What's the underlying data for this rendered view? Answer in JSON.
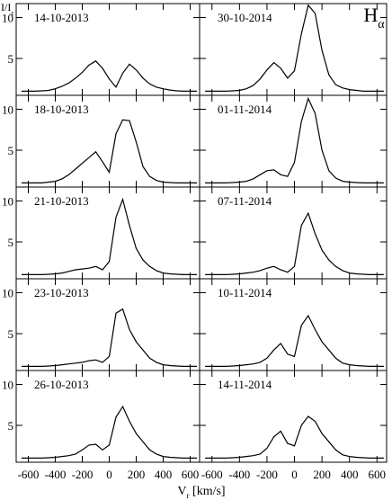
{
  "figure": {
    "title": {
      "main": "H",
      "sub": "α"
    },
    "y_label": {
      "main": "I/I",
      "sub": "c"
    },
    "x_label": {
      "main": "V",
      "sub": "r",
      "unit": " [km/s]"
    }
  },
  "chart_data": [
    {
      "type": "line",
      "title": "14-10-2013",
      "xlim": [
        -690,
        670
      ],
      "ylim": [
        0.5,
        11.7
      ],
      "xticks": [
        -600,
        -400,
        -200,
        0,
        200,
        400,
        600
      ],
      "yticks": [
        5,
        10
      ],
      "color": "#000000",
      "x": [
        -650,
        -600,
        -550,
        -500,
        -450,
        -400,
        -350,
        -300,
        -250,
        -200,
        -150,
        -100,
        -50,
        0,
        50,
        100,
        150,
        200,
        250,
        300,
        350,
        400,
        450,
        500,
        550,
        600,
        650
      ],
      "values": [
        1,
        1,
        1,
        1.05,
        1.1,
        1.3,
        1.6,
        2.0,
        2.6,
        3.3,
        4.2,
        4.7,
        3.8,
        2.5,
        1.5,
        3.2,
        4.3,
        3.6,
        2.6,
        1.9,
        1.5,
        1.3,
        1.15,
        1.05,
        1,
        1,
        1
      ]
    },
    {
      "type": "line",
      "title": "30-10-2014",
      "xlim": [
        -690,
        670
      ],
      "ylim": [
        0.5,
        11.7
      ],
      "xticks": [
        -600,
        -400,
        -200,
        0,
        200,
        400,
        600
      ],
      "yticks": [
        5,
        10
      ],
      "color": "#000000",
      "x": [
        -650,
        -600,
        -550,
        -500,
        -450,
        -400,
        -350,
        -300,
        -250,
        -200,
        -150,
        -100,
        -50,
        0,
        50,
        100,
        150,
        200,
        250,
        300,
        350,
        400,
        450,
        500,
        550,
        600,
        650
      ],
      "values": [
        1,
        1,
        1,
        1,
        1.05,
        1.1,
        1.3,
        1.7,
        2.5,
        3.6,
        4.5,
        3.8,
        2.6,
        3.5,
        8,
        11.5,
        10.5,
        6,
        3,
        1.8,
        1.4,
        1.2,
        1.1,
        1,
        1,
        1,
        1
      ]
    },
    {
      "type": "line",
      "title": "18-10-2013",
      "xlim": [
        -690,
        670
      ],
      "ylim": [
        0.5,
        11.7
      ],
      "xticks": [
        -600,
        -400,
        -200,
        0,
        200,
        400,
        600
      ],
      "yticks": [
        5,
        10
      ],
      "color": "#000000",
      "x": [
        -650,
        -600,
        -550,
        -500,
        -450,
        -400,
        -350,
        -300,
        -250,
        -200,
        -150,
        -100,
        -50,
        0,
        50,
        100,
        150,
        200,
        250,
        300,
        350,
        400,
        450,
        500,
        550,
        600,
        650
      ],
      "values": [
        1,
        1,
        1,
        1,
        1.1,
        1.2,
        1.5,
        2.0,
        2.7,
        3.4,
        4.1,
        4.8,
        3.6,
        2.3,
        7,
        8.7,
        8.6,
        6,
        3,
        1.8,
        1.3,
        1.1,
        1.05,
        1,
        1,
        1,
        1
      ]
    },
    {
      "type": "line",
      "title": "01-11-2014",
      "xlim": [
        -690,
        670
      ],
      "ylim": [
        0.5,
        11.7
      ],
      "xticks": [
        -600,
        -400,
        -200,
        0,
        200,
        400,
        600
      ],
      "yticks": [
        5,
        10
      ],
      "color": "#000000",
      "x": [
        -650,
        -600,
        -550,
        -500,
        -450,
        -400,
        -350,
        -300,
        -250,
        -200,
        -150,
        -100,
        -50,
        0,
        50,
        100,
        150,
        200,
        250,
        300,
        350,
        400,
        450,
        500,
        550,
        600,
        650
      ],
      "values": [
        1,
        1,
        1,
        1,
        1.05,
        1.1,
        1.2,
        1.5,
        2.0,
        2.5,
        2.6,
        2.0,
        1.8,
        3.5,
        8.5,
        11.3,
        9.5,
        5,
        2.5,
        1.6,
        1.2,
        1.1,
        1.05,
        1,
        1,
        1,
        1
      ]
    },
    {
      "type": "line",
      "title": "21-10-2013",
      "xlim": [
        -690,
        670
      ],
      "ylim": [
        0.5,
        11.7
      ],
      "xticks": [
        -600,
        -400,
        -200,
        0,
        200,
        400,
        600
      ],
      "yticks": [
        5,
        10
      ],
      "color": "#000000",
      "x": [
        -650,
        -600,
        -550,
        -500,
        -450,
        -400,
        -350,
        -300,
        -250,
        -200,
        -150,
        -100,
        -50,
        0,
        50,
        100,
        150,
        200,
        250,
        300,
        350,
        400,
        450,
        500,
        550,
        600,
        650
      ],
      "values": [
        1,
        1,
        1,
        1,
        1.05,
        1.1,
        1.2,
        1.4,
        1.6,
        1.7,
        1.8,
        2.0,
        1.6,
        2.6,
        8,
        10.2,
        7,
        4.2,
        2.8,
        2.0,
        1.5,
        1.2,
        1.1,
        1.05,
        1,
        1,
        1
      ]
    },
    {
      "type": "line",
      "title": "07-11-2014",
      "xlim": [
        -690,
        670
      ],
      "ylim": [
        0.5,
        11.7
      ],
      "xticks": [
        -600,
        -400,
        -200,
        0,
        200,
        400,
        600
      ],
      "yticks": [
        5,
        10
      ],
      "color": "#000000",
      "x": [
        -650,
        -600,
        -550,
        -500,
        -450,
        -400,
        -350,
        -300,
        -250,
        -200,
        -150,
        -100,
        -50,
        0,
        50,
        100,
        150,
        200,
        250,
        300,
        350,
        400,
        450,
        500,
        550,
        600,
        650
      ],
      "values": [
        1,
        1,
        1,
        1,
        1.05,
        1.1,
        1.2,
        1.3,
        1.5,
        1.8,
        2.0,
        1.6,
        1.3,
        2.0,
        7,
        8.5,
        6,
        4,
        2.8,
        2.0,
        1.5,
        1.2,
        1.1,
        1.05,
        1,
        1,
        1
      ]
    },
    {
      "type": "line",
      "title": "23-10-2013",
      "xlim": [
        -690,
        670
      ],
      "ylim": [
        0.5,
        11.7
      ],
      "xticks": [
        -600,
        -400,
        -200,
        0,
        200,
        400,
        600
      ],
      "yticks": [
        5,
        10
      ],
      "color": "#000000",
      "x": [
        -650,
        -600,
        -550,
        -500,
        -450,
        -400,
        -350,
        -300,
        -250,
        -200,
        -150,
        -100,
        -50,
        0,
        50,
        100,
        150,
        200,
        250,
        300,
        350,
        400,
        450,
        500,
        550,
        600,
        650
      ],
      "values": [
        1,
        1,
        1,
        1,
        1.05,
        1.1,
        1.2,
        1.3,
        1.4,
        1.5,
        1.7,
        1.8,
        1.5,
        2.2,
        7.5,
        8.0,
        5.5,
        4,
        3,
        2,
        1.5,
        1.2,
        1.1,
        1.05,
        1,
        1,
        1
      ]
    },
    {
      "type": "line",
      "title": "10-11-2014",
      "xlim": [
        -690,
        670
      ],
      "ylim": [
        0.5,
        11.7
      ],
      "xticks": [
        -600,
        -400,
        -200,
        0,
        200,
        400,
        600
      ],
      "yticks": [
        5,
        10
      ],
      "color": "#000000",
      "x": [
        -650,
        -600,
        -550,
        -500,
        -450,
        -400,
        -350,
        -300,
        -250,
        -200,
        -150,
        -100,
        -50,
        0,
        50,
        100,
        150,
        200,
        250,
        300,
        350,
        400,
        450,
        500,
        550,
        600,
        650
      ],
      "values": [
        1,
        1,
        1,
        1,
        1.05,
        1.1,
        1.2,
        1.3,
        1.5,
        2,
        3,
        3.8,
        2.5,
        2.2,
        6,
        7.2,
        5.5,
        4,
        3,
        2,
        1.4,
        1.2,
        1.1,
        1.05,
        1,
        1,
        1
      ]
    },
    {
      "type": "line",
      "title": "26-10-2013",
      "xlim": [
        -690,
        670
      ],
      "ylim": [
        0.5,
        11.7
      ],
      "xticks": [
        -600,
        -400,
        -200,
        0,
        200,
        400,
        600
      ],
      "yticks": [
        5,
        10
      ],
      "color": "#000000",
      "x": [
        -650,
        -600,
        -550,
        -500,
        -450,
        -400,
        -350,
        -300,
        -250,
        -200,
        -150,
        -100,
        -50,
        0,
        50,
        100,
        150,
        200,
        250,
        300,
        350,
        400,
        450,
        500,
        550,
        600,
        650
      ],
      "values": [
        1,
        1,
        1,
        1,
        1.05,
        1.1,
        1.2,
        1.3,
        1.5,
        2,
        2.6,
        2.7,
        2.0,
        2.6,
        6,
        7.3,
        5.5,
        4,
        3,
        2,
        1.5,
        1.2,
        1.1,
        1.05,
        1,
        1,
        1
      ]
    },
    {
      "type": "line",
      "title": "14-11-2014",
      "xlim": [
        -690,
        670
      ],
      "ylim": [
        0.5,
        11.7
      ],
      "xticks": [
        -600,
        -400,
        -200,
        0,
        200,
        400,
        600
      ],
      "yticks": [
        5,
        10
      ],
      "color": "#000000",
      "x": [
        -650,
        -600,
        -550,
        -500,
        -450,
        -400,
        -350,
        -300,
        -250,
        -200,
        -150,
        -100,
        -50,
        0,
        50,
        100,
        150,
        200,
        250,
        300,
        350,
        400,
        450,
        500,
        550,
        600,
        650
      ],
      "values": [
        1,
        1,
        1,
        1,
        1.05,
        1.1,
        1.2,
        1.3,
        1.5,
        2.2,
        3.6,
        4.3,
        2.8,
        2.5,
        5,
        6.1,
        5.5,
        4,
        3,
        2,
        1.4,
        1.2,
        1.1,
        1.05,
        1,
        1,
        1
      ]
    }
  ]
}
